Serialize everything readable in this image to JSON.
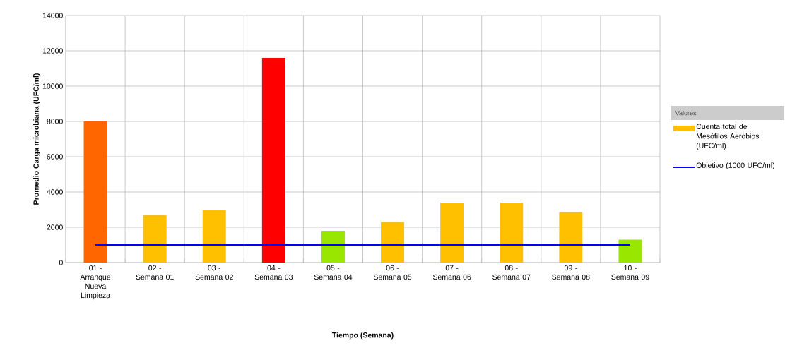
{
  "chart_data": {
    "type": "bar",
    "xlabel": "Tiempo (Semana)",
    "ylabel": "Promedio Carga microbiana (UFC/ml)",
    "legend_title": "Valores",
    "categories": [
      "01 - Arranque Nueva Limpieza",
      "02 - Semana 01",
      "03 - Semana 02",
      "04 - Semana 03",
      "05 - Semana 04",
      "06 - Semana 05",
      "07 - Semana 06",
      "08 - Semana 07",
      "09 - Semana 08",
      "10 - Semana 09"
    ],
    "series": [
      {
        "name": "Cuenta total de Mesófilos Aerobios (UFC/ml)",
        "color": "#ffc000",
        "colors": [
          "#ff6600",
          "#ffc000",
          "#ffc000",
          "#ff0000",
          "#99e600",
          "#ffc000",
          "#ffc000",
          "#ffc000",
          "#ffc000",
          "#99e600"
        ],
        "values": [
          8000,
          2700,
          3000,
          11600,
          1800,
          2300,
          3400,
          3400,
          2850,
          1300
        ]
      },
      {
        "name": "Objetivo (1000 UFC/ml)",
        "type": "line",
        "color": "#0000ff",
        "values": [
          1000,
          1000,
          1000,
          1000,
          1000,
          1000,
          1000,
          1000,
          1000,
          1000
        ]
      }
    ],
    "ylim": [
      0,
      14000
    ],
    "yticks": [
      0,
      2000,
      4000,
      6000,
      8000,
      10000,
      12000,
      14000
    ],
    "grid": true,
    "legend": "right"
  }
}
